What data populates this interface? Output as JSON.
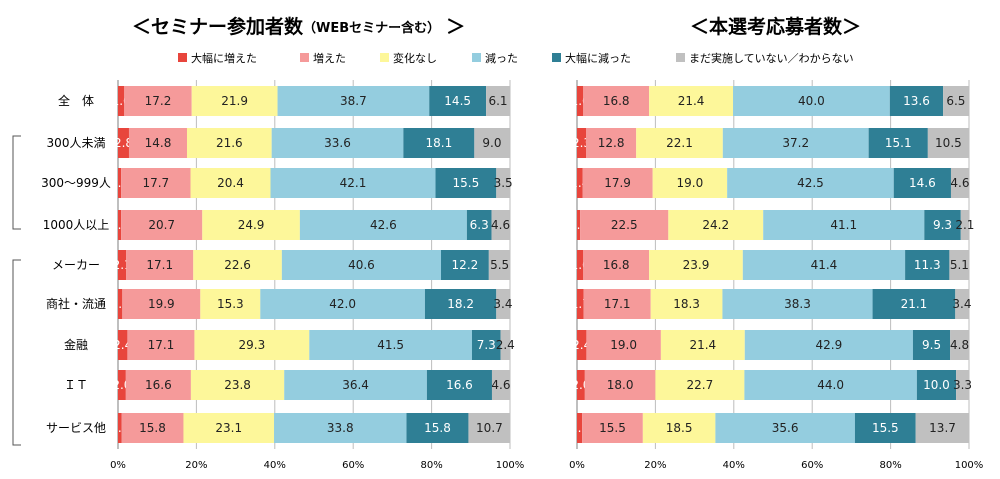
{
  "legend": [
    {
      "label": "大幅に増えた",
      "color": "#e8453c"
    },
    {
      "label": "増えた",
      "color": "#f59a9a"
    },
    {
      "label": "変化なし",
      "color": "#fdf79a"
    },
    {
      "label": "減った",
      "color": "#94cddf"
    },
    {
      "label": "大幅に減った",
      "color": "#2f7f95"
    },
    {
      "label": "まだ実施していない／わからない",
      "color": "#c0c0c0"
    }
  ],
  "chart_data": [
    {
      "type": "bar",
      "orientation": "horizontal",
      "stacked": true,
      "title": "＜セミナー参加者数",
      "title_sub": "（WEBセミナー含む）",
      "title_close": "＞",
      "categories": [
        "全　体",
        "300人未満",
        "300～999人",
        "1000人以上",
        "メーカー",
        "商社・流通",
        "金融",
        "ＩＴ",
        "サービス他"
      ],
      "series": [
        {
          "name": "大幅に増えた",
          "values": [
            1.6,
            2.8,
            0.8,
            0.8,
            2.1,
            1.1,
            2.4,
            2.0,
            0.9
          ]
        },
        {
          "name": "増えた",
          "values": [
            17.2,
            14.8,
            17.7,
            20.7,
            17.1,
            19.9,
            17.1,
            16.6,
            15.8
          ]
        },
        {
          "name": "変化なし",
          "values": [
            21.9,
            21.6,
            20.4,
            24.9,
            22.6,
            15.3,
            29.3,
            23.8,
            23.1
          ]
        },
        {
          "name": "減った",
          "values": [
            38.7,
            33.6,
            42.1,
            42.6,
            40.6,
            42.0,
            41.5,
            36.4,
            33.8
          ]
        },
        {
          "name": "大幅に減った",
          "values": [
            14.5,
            18.1,
            15.5,
            6.3,
            12.2,
            18.2,
            7.3,
            16.6,
            15.8
          ]
        },
        {
          "name": "まだ実施していない／わからない",
          "values": [
            6.1,
            9.0,
            3.5,
            4.6,
            5.5,
            3.4,
            2.4,
            4.6,
            10.7
          ]
        }
      ],
      "xlim": [
        0,
        100
      ],
      "xticks": [
        "0%",
        "20%",
        "40%",
        "60%",
        "80%",
        "100%"
      ]
    },
    {
      "type": "bar",
      "orientation": "horizontal",
      "stacked": true,
      "title": "＜本選考応募者数＞",
      "categories": [
        "全　体",
        "300人未満",
        "300～999人",
        "1000人以上",
        "メーカー",
        "商社・流通",
        "金融",
        "ＩＴ",
        "サービス他"
      ],
      "series": [
        {
          "name": "大幅に増えた",
          "values": [
            1.6,
            2.3,
            1.4,
            0.8,
            1.6,
            1.7,
            2.4,
            2.0,
            1.3
          ]
        },
        {
          "name": "増えた",
          "values": [
            16.8,
            12.8,
            17.9,
            22.5,
            16.8,
            17.1,
            19.0,
            18.0,
            15.5
          ]
        },
        {
          "name": "変化なし",
          "values": [
            21.4,
            22.1,
            19.0,
            24.2,
            23.9,
            18.3,
            21.4,
            22.7,
            18.5
          ]
        },
        {
          "name": "減った",
          "values": [
            40.0,
            37.2,
            42.5,
            41.1,
            41.4,
            38.3,
            42.9,
            44.0,
            35.6
          ]
        },
        {
          "name": "大幅に減った",
          "values": [
            13.6,
            15.1,
            14.6,
            9.3,
            11.3,
            21.1,
            9.5,
            10.0,
            15.5
          ]
        },
        {
          "name": "まだ実施していない／わからない",
          "values": [
            6.5,
            10.5,
            4.6,
            2.1,
            5.1,
            3.4,
            4.8,
            3.3,
            13.7
          ]
        }
      ],
      "xlim": [
        0,
        100
      ],
      "xticks": [
        "0%",
        "20%",
        "40%",
        "60%",
        "80%",
        "100%"
      ]
    }
  ]
}
